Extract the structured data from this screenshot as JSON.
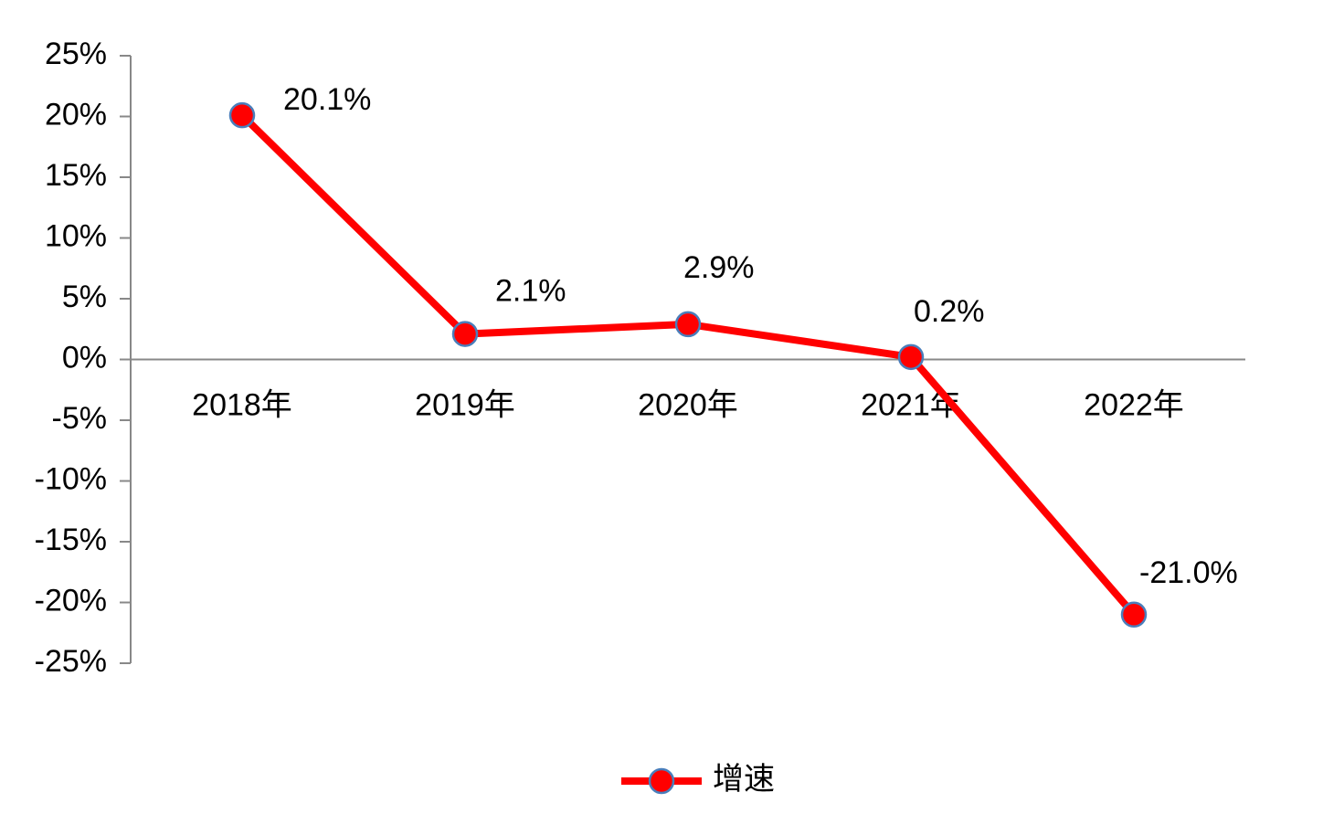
{
  "chart_data": {
    "type": "line",
    "categories": [
      "2018年",
      "2019年",
      "2020年",
      "2021年",
      "2022年"
    ],
    "series": [
      {
        "name": "增速",
        "color": "#ff0000",
        "marker_edge_color": "#4a7ebb",
        "values": [
          20.1,
          2.1,
          2.9,
          0.2,
          -21.0
        ],
        "value_labels": [
          "20.1%",
          "2.1%",
          "2.9%",
          "0.2%",
          "-21.0%"
        ]
      }
    ],
    "ylim": [
      -25,
      25
    ],
    "yticks": [
      {
        "value": 25,
        "label": "25%"
      },
      {
        "value": 20,
        "label": "20%"
      },
      {
        "value": 15,
        "label": "15%"
      },
      {
        "value": 10,
        "label": "10%"
      },
      {
        "value": 5,
        "label": "5%"
      },
      {
        "value": 0,
        "label": "0%"
      },
      {
        "value": -5,
        "label": "-5%"
      },
      {
        "value": -10,
        "label": "-10%"
      },
      {
        "value": -15,
        "label": "-15%"
      },
      {
        "value": -20,
        "label": "-20%"
      },
      {
        "value": -25,
        "label": "-25%"
      }
    ],
    "grid": false,
    "legend": "bottom"
  }
}
